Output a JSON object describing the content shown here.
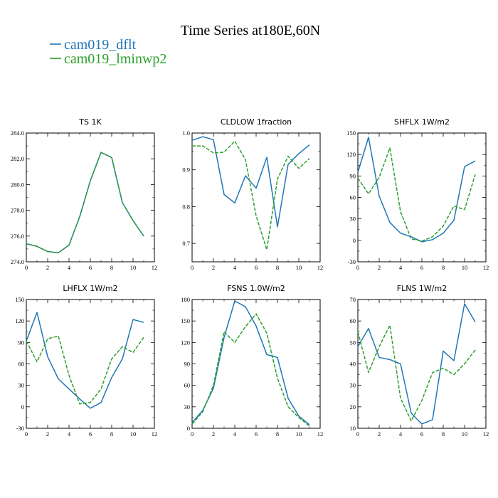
{
  "figure": {
    "title": "Time Series at180E,60N",
    "legend": [
      {
        "label": "cam019_dflt",
        "color": "#1f77b4",
        "dash": "solid"
      },
      {
        "label": "cam019_lminwp2",
        "color": "#2ca02c",
        "dash": "dashed"
      }
    ]
  },
  "chart_data": [
    {
      "type": "line",
      "title": "TS   1K",
      "x": [
        0,
        1,
        2,
        3,
        4,
        5,
        6,
        7,
        8,
        9,
        10,
        11
      ],
      "xlim": [
        0,
        12
      ],
      "ylim": [
        274.0,
        284.0
      ],
      "xticks": [
        "0",
        "2",
        "4",
        "6",
        "8",
        "10",
        "12"
      ],
      "yticks": [
        "274.0",
        "276.0",
        "278.0",
        "280.0",
        "282.0",
        "284.0"
      ],
      "series": [
        {
          "name": "cam019_dflt",
          "values": [
            275.4,
            275.2,
            274.8,
            274.7,
            275.3,
            277.5,
            280.3,
            282.5,
            282.1,
            278.6,
            277.2,
            276.0
          ]
        },
        {
          "name": "cam019_lminwp2",
          "values": [
            275.4,
            275.2,
            274.8,
            274.7,
            275.3,
            277.5,
            280.3,
            282.5,
            282.1,
            278.6,
            277.2,
            276.0
          ]
        }
      ]
    },
    {
      "type": "line",
      "title": "CLDLOW   1fraction",
      "x": [
        0,
        1,
        2,
        3,
        4,
        5,
        6,
        7,
        8,
        9,
        10,
        11
      ],
      "xlim": [
        0,
        12
      ],
      "ylim": [
        0.65,
        1.0
      ],
      "xticks": [
        "0",
        "2",
        "4",
        "6",
        "8",
        "10",
        "12"
      ],
      "yticks": [
        "0.7",
        "0.8",
        "0.9",
        "1.0"
      ],
      "series": [
        {
          "name": "cam019_dflt",
          "values": [
            0.98,
            0.99,
            0.982,
            0.833,
            0.81,
            0.884,
            0.85,
            0.934,
            0.745,
            0.915,
            0.944,
            0.968
          ]
        },
        {
          "name": "cam019_lminwp2",
          "values": [
            0.965,
            0.965,
            0.946,
            0.948,
            0.978,
            0.928,
            0.775,
            0.683,
            0.875,
            0.937,
            0.904,
            0.931
          ]
        }
      ]
    },
    {
      "type": "line",
      "title": "SHFLX   1W/m2",
      "x": [
        0,
        1,
        2,
        3,
        4,
        5,
        6,
        7,
        8,
        9,
        10,
        11
      ],
      "xlim": [
        0,
        12
      ],
      "ylim": [
        -30,
        150
      ],
      "xticks": [
        "0",
        "2",
        "4",
        "6",
        "8",
        "10",
        "12"
      ],
      "yticks": [
        "-30",
        "0",
        "30",
        "60",
        "90",
        "120",
        "150"
      ],
      "series": [
        {
          "name": "cam019_dflt",
          "values": [
            95,
            144,
            62,
            25,
            10,
            5,
            -2,
            1,
            10,
            28,
            103,
            111
          ]
        },
        {
          "name": "cam019_lminwp2",
          "values": [
            87,
            65,
            88,
            129,
            40,
            2,
            -1,
            5,
            20,
            48,
            43,
            92
          ]
        }
      ]
    },
    {
      "type": "line",
      "title": "LHFLX   1W/m2",
      "x": [
        0,
        1,
        2,
        3,
        4,
        5,
        6,
        7,
        8,
        9,
        10,
        11
      ],
      "xlim": [
        0,
        12
      ],
      "ylim": [
        -30,
        150
      ],
      "xticks": [
        "0",
        "2",
        "4",
        "6",
        "8",
        "10",
        "12"
      ],
      "yticks": [
        "-30",
        "0",
        "30",
        "60",
        "90",
        "120",
        "150"
      ],
      "series": [
        {
          "name": "cam019_dflt",
          "values": [
            92,
            132,
            70,
            39,
            25,
            11,
            -2,
            6,
            41,
            67,
            122,
            118
          ]
        },
        {
          "name": "cam019_lminwp2",
          "values": [
            92,
            63,
            95,
            99,
            44,
            4,
            6,
            25,
            67,
            84,
            76,
            97
          ]
        }
      ]
    },
    {
      "type": "line",
      "title": "FSNS   1.0W/m2",
      "x": [
        0,
        1,
        2,
        3,
        4,
        5,
        6,
        7,
        8,
        9,
        10,
        11
      ],
      "xlim": [
        0,
        12
      ],
      "ylim": [
        0,
        180
      ],
      "xticks": [
        "0",
        "2",
        "4",
        "6",
        "8",
        "10",
        "12"
      ],
      "yticks": [
        "0",
        "30",
        "60",
        "90",
        "120",
        "150",
        "180"
      ],
      "series": [
        {
          "name": "cam019_dflt",
          "values": [
            8,
            25,
            56,
            127,
            178,
            170,
            143,
            103,
            99,
            42,
            17,
            5
          ]
        },
        {
          "name": "cam019_lminwp2",
          "values": [
            6,
            23,
            60,
            135,
            120,
            142,
            160,
            133,
            70,
            30,
            15,
            3
          ]
        }
      ]
    },
    {
      "type": "line",
      "title": "FLNS   1W/m2",
      "x": [
        0,
        1,
        2,
        3,
        4,
        5,
        6,
        7,
        8,
        9,
        10,
        11
      ],
      "xlim": [
        0,
        12
      ],
      "ylim": [
        10,
        70
      ],
      "xticks": [
        "0",
        "2",
        "4",
        "6",
        "8",
        "10",
        "12"
      ],
      "yticks": [
        "10",
        "20",
        "30",
        "40",
        "50",
        "60",
        "70"
      ],
      "series": [
        {
          "name": "cam019_dflt",
          "values": [
            48,
            56.5,
            43,
            42,
            40,
            17,
            12,
            14,
            46,
            41.5,
            68,
            59.5
          ]
        },
        {
          "name": "cam019_lminwp2",
          "values": [
            55,
            36,
            48,
            58,
            24,
            13.5,
            23,
            36,
            38,
            35,
            40,
            46.5
          ]
        }
      ]
    }
  ]
}
